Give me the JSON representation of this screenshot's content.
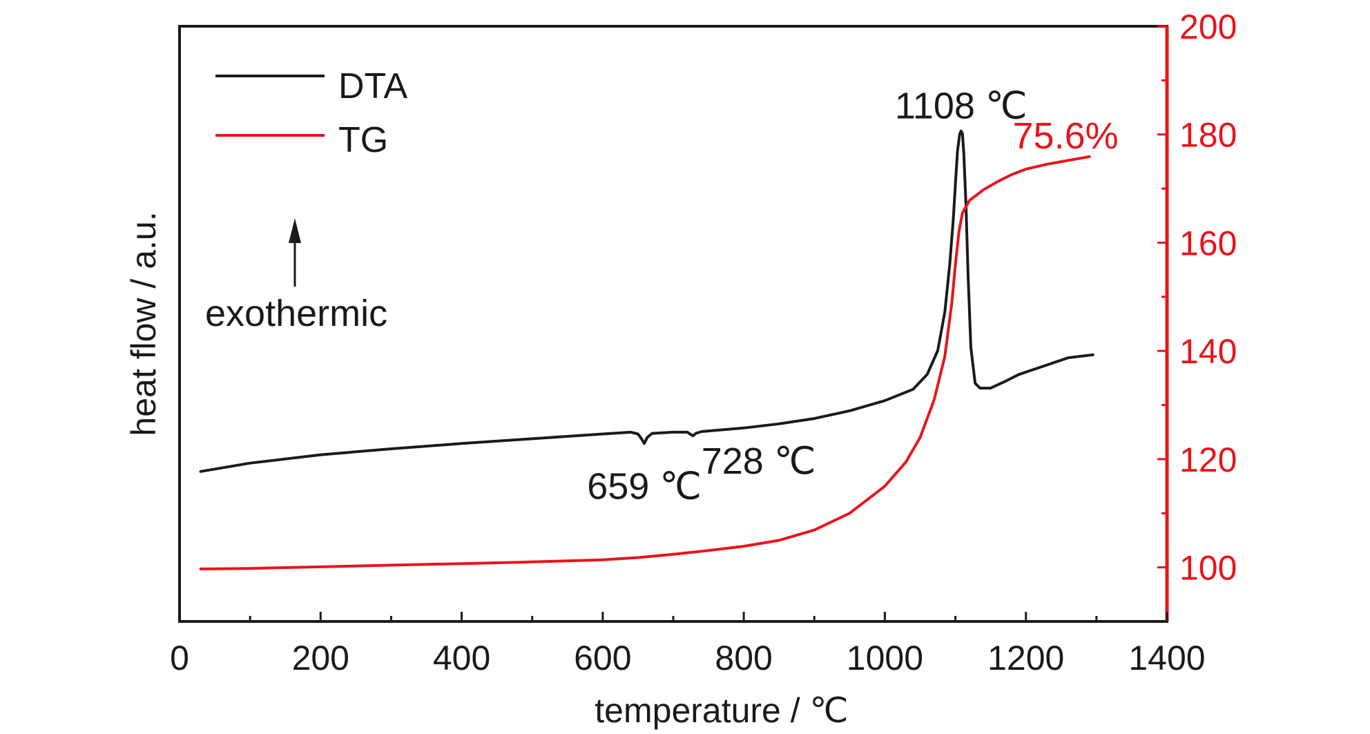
{
  "chart_data": {
    "type": "line",
    "xlabel": "temperature / ℃",
    "ylabel_left": "heat flow / a.u.",
    "ylabel_right": "",
    "xlim": [
      0,
      1400
    ],
    "x_ticks": [
      0,
      200,
      400,
      600,
      800,
      1000,
      1200,
      1400
    ],
    "x_tick_labels": [
      "0",
      "200",
      "400",
      "600",
      "800",
      "1000",
      "1200",
      "1400"
    ],
    "x_minor_ticks": [
      100,
      300,
      500,
      700,
      900,
      1100,
      1300
    ],
    "y_right_lim": [
      90,
      200
    ],
    "y_right_ticks": [
      100,
      120,
      140,
      160,
      180,
      200
    ],
    "y_right_tick_labels": [
      "100",
      "120",
      "140",
      "160",
      "180",
      "200"
    ],
    "y_right_minor_ticks": [
      110,
      130,
      150,
      170,
      190
    ],
    "y_left_ticks_shown": false,
    "grid": false,
    "legend_position": "top-left",
    "colors": {
      "DTA": "#1a1a1a",
      "TG": "#e8141b",
      "right_axis": "#e8141b"
    },
    "series": [
      {
        "name": "DTA",
        "axis": "left",
        "x": [
          30,
          100,
          200,
          300,
          400,
          500,
          600,
          640,
          650,
          655,
          659,
          663,
          670,
          700,
          720,
          725,
          728,
          732,
          740,
          800,
          850,
          900,
          950,
          1000,
          1040,
          1060,
          1075,
          1085,
          1092,
          1097,
          1100,
          1103,
          1106,
          1108,
          1110,
          1112,
          1115,
          1118,
          1122,
          1128,
          1135,
          1150,
          1170,
          1190,
          1205,
          1230,
          1260,
          1295
        ],
        "y": [
          25.2,
          26.6,
          28.0,
          29.0,
          29.9,
          30.7,
          31.5,
          31.8,
          31.5,
          30.7,
          29.9,
          30.9,
          31.6,
          31.8,
          31.8,
          31.4,
          31.2,
          31.6,
          31.9,
          32.5,
          33.2,
          34.1,
          35.4,
          37.1,
          39.0,
          41.5,
          45.5,
          52.0,
          60.0,
          67.5,
          73.5,
          79.0,
          81.8,
          82.4,
          82.0,
          78.5,
          70.0,
          58.0,
          46.0,
          40.0,
          39.2,
          39.2,
          40.3,
          41.5,
          42.1,
          43.1,
          44.3,
          44.8
        ]
      },
      {
        "name": "TG",
        "axis": "right",
        "x": [
          30,
          100,
          200,
          300,
          400,
          500,
          600,
          650,
          700,
          750,
          800,
          850,
          900,
          950,
          1000,
          1030,
          1050,
          1070,
          1085,
          1095,
          1100,
          1105,
          1110,
          1120,
          1140,
          1160,
          1180,
          1200,
          1230,
          1260,
          1290
        ],
        "y": [
          99.7,
          99.8,
          100.1,
          100.4,
          100.7,
          101.0,
          101.4,
          101.8,
          102.4,
          103.1,
          103.9,
          105.0,
          106.9,
          110.0,
          115.0,
          119.5,
          124.0,
          131.0,
          139.0,
          149.0,
          156.0,
          162.0,
          165.5,
          167.8,
          169.8,
          171.3,
          172.6,
          173.6,
          174.5,
          175.2,
          175.9
        ]
      }
    ],
    "annotations": [
      {
        "text": "659 ℃",
        "x": 659,
        "series": "DTA",
        "color": "#1a1a1a"
      },
      {
        "text": "728 ℃",
        "x": 728,
        "series": "DTA",
        "color": "#1a1a1a"
      },
      {
        "text": "1108 ℃",
        "x": 1108,
        "series": "DTA",
        "color": "#1a1a1a"
      },
      {
        "text": "75.6%",
        "x": 1290,
        "series": "TG",
        "color": "#e8141b"
      }
    ],
    "exo_label": "exothermic"
  }
}
